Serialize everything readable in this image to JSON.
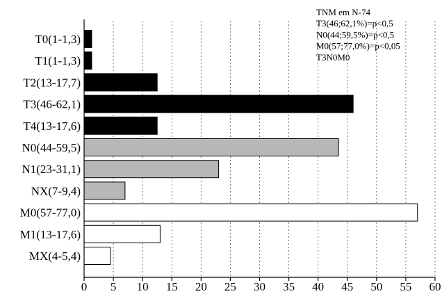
{
  "chart_data": {
    "type": "bar",
    "orientation": "horizontal",
    "categories": [
      "T0(1-1,3)",
      "T1(1-1,3)",
      "T2(13-17,7)",
      "T3(46-62,1)",
      "T4(13-17,6)",
      "N0(44-59,5)",
      "N1(23-31,1)",
      "NX(7-9,4)",
      "M0(57-77,0)",
      "M1(13-17,6)",
      "MX(4-5,4)"
    ],
    "values": [
      1.3,
      1.3,
      12.5,
      46,
      12.5,
      43.5,
      23,
      7,
      57,
      13,
      4.5
    ],
    "bar_colors": [
      "#000000",
      "#000000",
      "#000000",
      "#000000",
      "#000000",
      "#b5b7b9",
      "#b5b7b9",
      "#b5b7b9",
      "#ffffff",
      "#ffffff",
      "#ffffff"
    ],
    "title": "",
    "xlabel": "",
    "ylabel": "",
    "xlim": [
      0,
      60
    ],
    "xticks": [
      0,
      5,
      10,
      15,
      20,
      25,
      30,
      35,
      40,
      45,
      50,
      55,
      60
    ],
    "grid": "vertical-dotted",
    "annotation": {
      "position": "top-right",
      "lines": [
        "TNM em N-74",
        "T3(46;62,1%)=p<0,5",
        "N0(44;59,5%)=p<0,5",
        "M0(57;77,0%)=p<0,05",
        "T3N0M0"
      ]
    }
  }
}
